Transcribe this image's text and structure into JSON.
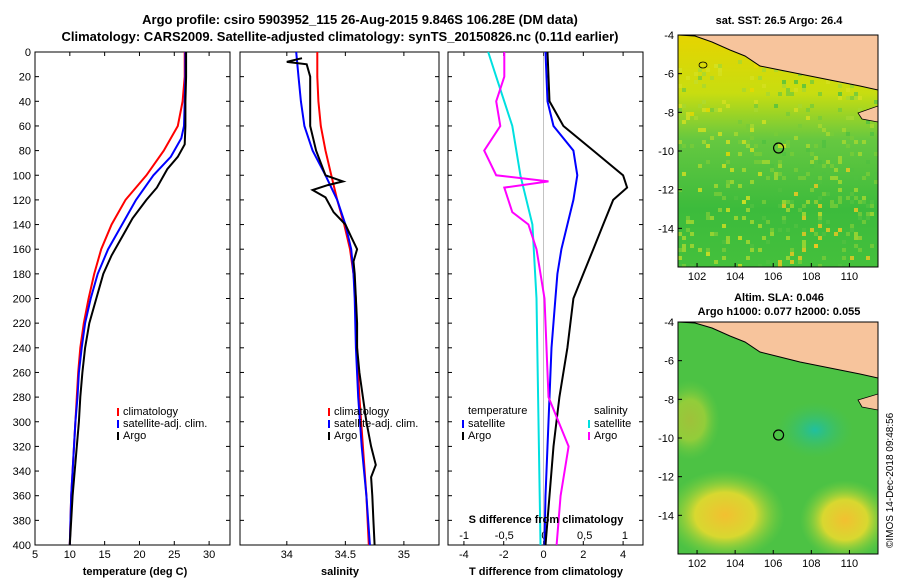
{
  "header": {
    "line1": "Argo profile: csiro 5903952_115 26-Aug-2015 9.846S 106.28E (DM data)",
    "line2": "Climatology: CARS2009. Satellite-adjusted climatology: synTS_20150826.nc (0.11d earlier)"
  },
  "stamp": "©IMOS 14-Dec-2018 09:48:56",
  "colors": {
    "climatology": "#ff0000",
    "satellite": "#0000ff",
    "argo": "#000000",
    "satellite_s": "#00e0e0",
    "argo_s": "#ff00ff",
    "land": "#f7c49c",
    "coast": "#000000"
  },
  "chart_data": [
    {
      "type": "line",
      "title": "",
      "xlabel": "temperature (deg C)",
      "ylabel": "",
      "xlim": [
        5,
        33
      ],
      "ylim": [
        400,
        0
      ],
      "xticks": [
        5,
        10,
        15,
        20,
        25,
        30
      ],
      "yticks": [
        0,
        20,
        40,
        60,
        80,
        100,
        120,
        140,
        160,
        180,
        200,
        220,
        240,
        260,
        280,
        300,
        320,
        340,
        360,
        380,
        400
      ],
      "legend": [
        "climatology",
        "satellite-adj. clim.",
        "Argo"
      ],
      "series": [
        {
          "name": "climatology",
          "color": "red",
          "points": [
            [
              26.5,
              0
            ],
            [
              26.5,
              20
            ],
            [
              26.2,
              40
            ],
            [
              25.5,
              60
            ],
            [
              23.5,
              80
            ],
            [
              21,
              100
            ],
            [
              18,
              120
            ],
            [
              16,
              140
            ],
            [
              14.5,
              160
            ],
            [
              13.5,
              180
            ],
            [
              12.7,
              200
            ],
            [
              12,
              220
            ],
            [
              11.5,
              240
            ],
            [
              11.2,
              260
            ],
            [
              11,
              280
            ],
            [
              10.8,
              300
            ],
            [
              10.6,
              320
            ],
            [
              10.4,
              340
            ],
            [
              10.2,
              360
            ],
            [
              10.1,
              380
            ],
            [
              10,
              400
            ]
          ]
        },
        {
          "name": "satellite-adj. clim.",
          "color": "blue",
          "points": [
            [
              26.6,
              0
            ],
            [
              26.6,
              20
            ],
            [
              26.5,
              40
            ],
            [
              26.4,
              60
            ],
            [
              26,
              70
            ],
            [
              24.5,
              85
            ],
            [
              22,
              100
            ],
            [
              19.5,
              120
            ],
            [
              17.5,
              140
            ],
            [
              15.5,
              160
            ],
            [
              14,
              180
            ],
            [
              13,
              200
            ],
            [
              12.2,
              220
            ],
            [
              11.7,
              240
            ],
            [
              11.3,
              260
            ],
            [
              11.1,
              280
            ],
            [
              10.8,
              300
            ],
            [
              10.6,
              320
            ],
            [
              10.4,
              340
            ],
            [
              10.2,
              360
            ],
            [
              10.1,
              380
            ],
            [
              10,
              400
            ]
          ]
        },
        {
          "name": "Argo",
          "color": "black",
          "points": [
            [
              26.7,
              0
            ],
            [
              26.7,
              20
            ],
            [
              26.6,
              40
            ],
            [
              26.6,
              60
            ],
            [
              26.5,
              75
            ],
            [
              25.5,
              85
            ],
            [
              24,
              95
            ],
            [
              22.5,
              110
            ],
            [
              21,
              120
            ],
            [
              19,
              135
            ],
            [
              17.5,
              150
            ],
            [
              16,
              165
            ],
            [
              14.8,
              180
            ],
            [
              13.8,
              200
            ],
            [
              12.8,
              220
            ],
            [
              12.2,
              240
            ],
            [
              11.8,
              260
            ],
            [
              11.5,
              280
            ],
            [
              11.3,
              300
            ],
            [
              11,
              320
            ],
            [
              10.7,
              340
            ],
            [
              10.4,
              360
            ],
            [
              10.2,
              380
            ],
            [
              10,
              400
            ]
          ]
        }
      ]
    },
    {
      "type": "line",
      "xlabel": "salinity",
      "xlim": [
        33.6,
        35.3
      ],
      "ylim": [
        400,
        0
      ],
      "xticks": [
        34,
        34.5,
        35
      ],
      "legend": [
        "climatology",
        "satellite-adj. clim.",
        "Argo"
      ],
      "series": [
        {
          "name": "climatology",
          "color": "red",
          "points": [
            [
              34.26,
              0
            ],
            [
              34.26,
              20
            ],
            [
              34.27,
              40
            ],
            [
              34.29,
              60
            ],
            [
              34.33,
              80
            ],
            [
              34.38,
              100
            ],
            [
              34.43,
              120
            ],
            [
              34.49,
              140
            ],
            [
              34.54,
              160
            ],
            [
              34.57,
              180
            ],
            [
              34.59,
              200
            ],
            [
              34.6,
              240
            ],
            [
              34.62,
              280
            ],
            [
              34.65,
              320
            ],
            [
              34.68,
              360
            ],
            [
              34.7,
              400
            ]
          ]
        },
        {
          "name": "satellite-adj. clim.",
          "color": "blue",
          "points": [
            [
              34.08,
              0
            ],
            [
              34.1,
              20
            ],
            [
              34.12,
              40
            ],
            [
              34.15,
              60
            ],
            [
              34.22,
              80
            ],
            [
              34.33,
              100
            ],
            [
              34.43,
              120
            ],
            [
              34.5,
              140
            ],
            [
              34.55,
              160
            ],
            [
              34.57,
              180
            ],
            [
              34.58,
              200
            ],
            [
              34.59,
              240
            ],
            [
              34.61,
              280
            ],
            [
              34.64,
              320
            ],
            [
              34.68,
              360
            ],
            [
              34.71,
              400
            ]
          ]
        },
        {
          "name": "Argo",
          "color": "black",
          "points": [
            [
              34.13,
              5
            ],
            [
              34.0,
              8
            ],
            [
              34.17,
              10
            ],
            [
              34.2,
              20
            ],
            [
              34.2,
              40
            ],
            [
              34.2,
              60
            ],
            [
              34.25,
              80
            ],
            [
              34.33,
              100
            ],
            [
              34.48,
              105
            ],
            [
              34.35,
              108
            ],
            [
              34.22,
              112
            ],
            [
              34.33,
              118
            ],
            [
              34.4,
              130
            ],
            [
              34.5,
              140
            ],
            [
              34.55,
              150
            ],
            [
              34.6,
              160
            ],
            [
              34.57,
              170
            ],
            [
              34.58,
              180
            ],
            [
              34.59,
              200
            ],
            [
              34.6,
              220
            ],
            [
              34.6,
              240
            ],
            [
              34.62,
              260
            ],
            [
              34.65,
              280
            ],
            [
              34.68,
              300
            ],
            [
              34.72,
              320
            ],
            [
              34.76,
              335
            ],
            [
              34.72,
              345
            ],
            [
              34.73,
              360
            ],
            [
              34.74,
              380
            ],
            [
              34.75,
              400
            ]
          ]
        }
      ]
    },
    {
      "type": "line",
      "xlabel": "T difference from climatology",
      "secondary_xlabel": "S difference from climatology",
      "xlim": [
        -4.8,
        5
      ],
      "ylim": [
        400,
        0
      ],
      "xticks": [
        -4,
        -2,
        0,
        2,
        4
      ],
      "secondary_xticks": [
        -1,
        -0.5,
        0,
        0.5,
        1
      ],
      "legend_left": {
        "title": "temperature",
        "entries": [
          "satellite",
          "Argo"
        ]
      },
      "legend_right": {
        "title": "salinity",
        "entries": [
          "satellite",
          "Argo"
        ]
      },
      "series": [
        {
          "name": "T satellite",
          "color": "blue",
          "points": [
            [
              0.1,
              0
            ],
            [
              0.2,
              40
            ],
            [
              0.5,
              60
            ],
            [
              1.5,
              80
            ],
            [
              1.7,
              100
            ],
            [
              1.5,
              120
            ],
            [
              1.2,
              140
            ],
            [
              0.9,
              160
            ],
            [
              0.7,
              180
            ],
            [
              0.6,
              200
            ],
            [
              0.4,
              240
            ],
            [
              0.3,
              280
            ],
            [
              0.2,
              320
            ],
            [
              0.1,
              360
            ],
            [
              0.05,
              400
            ]
          ]
        },
        {
          "name": "T Argo",
          "color": "black",
          "points": [
            [
              0.2,
              0
            ],
            [
              0.3,
              40
            ],
            [
              1,
              60
            ],
            [
              2.5,
              80
            ],
            [
              4,
              100
            ],
            [
              4.2,
              110
            ],
            [
              3.5,
              120
            ],
            [
              3,
              140
            ],
            [
              2.5,
              160
            ],
            [
              2,
              180
            ],
            [
              1.5,
              200
            ],
            [
              1.2,
              240
            ],
            [
              0.8,
              280
            ],
            [
              0.5,
              320
            ],
            [
              0.3,
              360
            ],
            [
              0.1,
              400
            ]
          ]
        },
        {
          "name": "S satellite",
          "color": "cyan",
          "points": [
            [
              -0.7,
              0
            ],
            [
              -0.6,
              20
            ],
            [
              -0.4,
              60
            ],
            [
              -0.3,
              100
            ],
            [
              -0.15,
              140
            ],
            [
              -0.1,
              200
            ],
            [
              -0.08,
              280
            ],
            [
              -0.06,
              360
            ],
            [
              -0.05,
              400
            ]
          ]
        },
        {
          "name": "S Argo",
          "color": "magenta",
          "points": [
            [
              -0.5,
              0
            ],
            [
              -0.5,
              20
            ],
            [
              -0.6,
              40
            ],
            [
              -0.55,
              60
            ],
            [
              -0.75,
              80
            ],
            [
              -0.6,
              100
            ],
            [
              0.05,
              105
            ],
            [
              -0.5,
              110
            ],
            [
              -0.4,
              130
            ],
            [
              -0.2,
              140
            ],
            [
              -0.1,
              160
            ],
            [
              0.0,
              200
            ],
            [
              0.05,
              280
            ],
            [
              0.3,
              320
            ],
            [
              0.25,
              340
            ],
            [
              0.2,
              360
            ],
            [
              0.15,
              400
            ]
          ]
        }
      ]
    },
    {
      "type": "heatmap",
      "title": "sat. SST: 26.5 Argo: 26.4",
      "xlim": [
        101,
        111.5
      ],
      "ylim": [
        -16,
        -4
      ],
      "xticks": [
        102,
        104,
        106,
        108,
        110
      ],
      "yticks": [
        -4,
        -6,
        -8,
        -10,
        -12,
        -14
      ],
      "marker": {
        "lon": 106.28,
        "lat": -9.846
      }
    },
    {
      "type": "heatmap",
      "title": "Altim. SLA: 0.046",
      "subtitle": "Argo h1000: 0.077 h2000: 0.055",
      "xlim": [
        101,
        111.5
      ],
      "ylim": [
        -16,
        -4
      ],
      "xticks": [
        102,
        104,
        106,
        108,
        110
      ],
      "yticks": [
        -4,
        -6,
        -8,
        -10,
        -12,
        -14
      ],
      "marker": {
        "lon": 106.28,
        "lat": -9.846
      }
    }
  ]
}
